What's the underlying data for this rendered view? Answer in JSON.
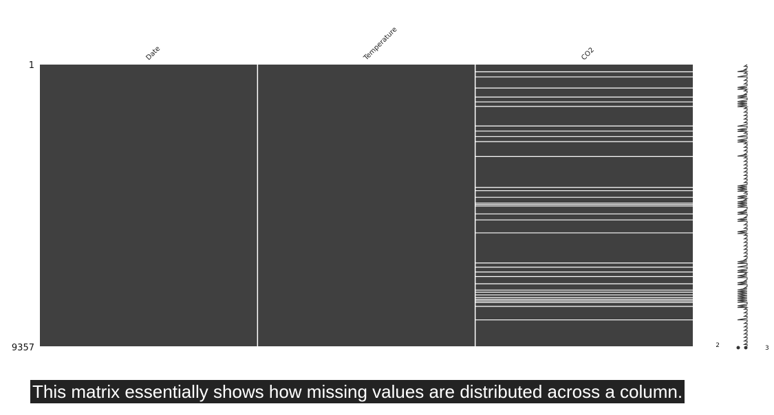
{
  "chart_data": {
    "type": "heatmap",
    "title": "",
    "columns": [
      "Date",
      "Temperature",
      "CO2"
    ],
    "row_range": [
      1,
      9357
    ],
    "row_labels": {
      "top": "1",
      "bottom": "9357"
    },
    "missing_rows": {
      "Date": [],
      "Temperature": [],
      "CO2": [
        240,
        410,
        780,
        1080,
        1240,
        1390,
        2040,
        2210,
        2390,
        2560,
        3050,
        4080,
        4190,
        4410,
        4600,
        4650,
        4700,
        4960,
        5160,
        5590,
        6590,
        6730,
        6890,
        7040,
        7280,
        7490,
        7560,
        7650,
        7740,
        7800,
        7850,
        7900,
        8030,
        8480
      ]
    },
    "sparkline": {
      "min_label": "2",
      "max_label": "3",
      "min": 2,
      "max": 3
    },
    "colors": {
      "present": "#404040",
      "missing": "#ffffff",
      "background": "#ffffff"
    }
  },
  "caption": "This matrix essentially shows how missing values are distributed across a column."
}
